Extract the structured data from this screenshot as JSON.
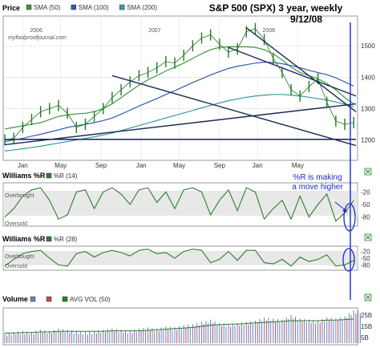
{
  "chart_data": [
    {
      "type": "line",
      "panel": "price",
      "title": "S&P 500 (SPX) 3 year, weekly",
      "subtitle": "9/12/08",
      "watermark": "myfoolproofjournal.com",
      "panel_label": "Price",
      "legend": [
        "SMA (50)",
        "SMA (100)",
        "SMA (200)"
      ],
      "legend_colors": [
        "#3a9a3a",
        "#2f5db0",
        "#3a9a9a"
      ],
      "x_tick_labels": [
        "Jan",
        "May",
        "Sep",
        "Jan",
        "May",
        "Sep",
        "Jan",
        "May"
      ],
      "year_labels": [
        "2006",
        "2007",
        "2008"
      ],
      "y_tick_labels": [
        "1500",
        "1400",
        "1300",
        "1200"
      ],
      "ylim": [
        1140,
        1590
      ],
      "x": [
        0,
        4,
        8,
        12,
        16,
        20,
        24,
        28,
        32,
        36,
        40,
        44,
        48,
        52,
        56,
        60,
        64,
        68,
        72,
        76,
        80,
        84,
        88,
        92,
        96,
        100,
        104,
        108,
        112,
        116,
        120,
        124,
        128,
        132,
        136,
        140,
        144,
        148,
        152,
        156
      ],
      "close": [
        1200,
        1205,
        1240,
        1265,
        1290,
        1300,
        1310,
        1285,
        1240,
        1250,
        1275,
        1300,
        1335,
        1360,
        1385,
        1405,
        1415,
        1430,
        1450,
        1445,
        1470,
        1500,
        1525,
        1535,
        1505,
        1480,
        1490,
        1545,
        1555,
        1520,
        1460,
        1415,
        1360,
        1340,
        1370,
        1395,
        1320,
        1260,
        1250,
        1255
      ],
      "sma50": [
        1235,
        1240,
        1245,
        1250,
        1255,
        1265,
        1275,
        1280,
        1283,
        1285,
        1290,
        1300,
        1315,
        1335,
        1355,
        1375,
        1392,
        1405,
        1420,
        1432,
        1445,
        1460,
        1475,
        1488,
        1495,
        1497,
        1497,
        1497,
        1495,
        1488,
        1475,
        1455,
        1432,
        1415,
        1405,
        1395,
        1380,
        1360,
        1335,
        1315
      ],
      "sma100": [
        1195,
        1200,
        1205,
        1212,
        1218,
        1225,
        1232,
        1240,
        1245,
        1250,
        1255,
        1262,
        1270,
        1282,
        1295,
        1308,
        1320,
        1332,
        1345,
        1357,
        1370,
        1383,
        1395,
        1407,
        1418,
        1428,
        1435,
        1440,
        1445,
        1448,
        1447,
        1443,
        1437,
        1430,
        1422,
        1415,
        1408,
        1398,
        1385,
        1372
      ],
      "sma200": [
        1165,
        1168,
        1172,
        1176,
        1180,
        1185,
        1190,
        1195,
        1200,
        1205,
        1210,
        1216,
        1222,
        1230,
        1238,
        1246,
        1254,
        1262,
        1270,
        1278,
        1286,
        1294,
        1302,
        1310,
        1318,
        1325,
        1331,
        1336,
        1340,
        1343,
        1345,
        1345,
        1343,
        1340,
        1336,
        1332,
        1327,
        1321,
        1314,
        1306
      ],
      "trendlines": [
        {
          "from": [
            48,
            1405
          ],
          "to": [
            157,
            1182
          ]
        },
        {
          "from": [
            108,
            1558
          ],
          "to": [
            157,
            1290
          ]
        },
        {
          "from": [
            100,
            1495
          ],
          "to": [
            157,
            1340
          ]
        },
        {
          "from": [
            0,
            1202
          ],
          "to": [
            157,
            1202
          ]
        },
        {
          "from": [
            0,
            1185
          ],
          "to": [
            157,
            1315
          ]
        }
      ]
    },
    {
      "type": "line",
      "panel": "williams14",
      "panel_label": "Williams %R",
      "legend": [
        "%R (14)"
      ],
      "top_label": "Overbought",
      "bottom_label": "Oversold",
      "y_tick_labels": [
        "-20",
        "-50",
        "-80"
      ],
      "ylim": [
        -100,
        0
      ],
      "annotation": "%R is making a move higher",
      "x": [
        0,
        4,
        8,
        12,
        16,
        20,
        24,
        28,
        32,
        36,
        40,
        44,
        48,
        52,
        56,
        60,
        64,
        68,
        72,
        76,
        80,
        84,
        88,
        92,
        96,
        100,
        104,
        108,
        112,
        116,
        120,
        124,
        128,
        132,
        136,
        140,
        144,
        148,
        152,
        156
      ],
      "values": [
        -80,
        -60,
        -30,
        -15,
        -10,
        -40,
        -85,
        -75,
        -20,
        -15,
        -60,
        -20,
        -10,
        -25,
        -50,
        -15,
        -10,
        -45,
        -20,
        -60,
        -15,
        -10,
        -20,
        -75,
        -40,
        -15,
        -65,
        -10,
        -20,
        -85,
        -60,
        -40,
        -85,
        -30,
        -80,
        -50,
        -25,
        -90,
        -70,
        -40
      ]
    },
    {
      "type": "line",
      "panel": "williams28",
      "panel_label": "Williams %R",
      "legend": [
        "%R (28)"
      ],
      "top_label": "Overbought",
      "bottom_label": "Oversold",
      "y_tick_labels": [
        "-20",
        "-50",
        "-80"
      ],
      "ylim": [
        -100,
        0
      ],
      "x": [
        0,
        4,
        8,
        12,
        16,
        20,
        24,
        28,
        32,
        36,
        40,
        44,
        48,
        52,
        56,
        60,
        64,
        68,
        72,
        76,
        80,
        84,
        88,
        92,
        96,
        100,
        104,
        108,
        112,
        116,
        120,
        124,
        128,
        132,
        136,
        140,
        144,
        148,
        152,
        156
      ],
      "values": [
        -85,
        -55,
        -30,
        -20,
        -15,
        -50,
        -80,
        -85,
        -30,
        -20,
        -45,
        -25,
        -15,
        -25,
        -40,
        -15,
        -10,
        -30,
        -25,
        -50,
        -20,
        -10,
        -15,
        -70,
        -55,
        -20,
        -60,
        -15,
        -15,
        -70,
        -75,
        -55,
        -85,
        -45,
        -65,
        -55,
        -35,
        -85,
        -80,
        -60
      ]
    },
    {
      "type": "bar",
      "panel": "volume",
      "panel_label": "Volume",
      "legend": [
        "AVG VOL (50)"
      ],
      "y_tick_labels": [
        "25B",
        "15B",
        "5B"
      ],
      "ylim": [
        0,
        30
      ],
      "x": [
        0,
        4,
        8,
        12,
        16,
        20,
        24,
        28,
        32,
        36,
        40,
        44,
        48,
        52,
        56,
        60,
        64,
        68,
        72,
        76,
        80,
        84,
        88,
        92,
        96,
        100,
        104,
        108,
        112,
        116,
        120,
        124,
        128,
        132,
        136,
        140,
        144,
        148,
        152,
        156
      ],
      "values": [
        8,
        9,
        10,
        9,
        11,
        10,
        12,
        11,
        10,
        9,
        10,
        11,
        12,
        11,
        10,
        12,
        13,
        12,
        14,
        13,
        15,
        16,
        18,
        20,
        17,
        16,
        17,
        18,
        19,
        22,
        21,
        20,
        24,
        21,
        20,
        19,
        22,
        21,
        23,
        28
      ],
      "avg": [
        9,
        9,
        9.5,
        9.5,
        10,
        10,
        10.5,
        10.5,
        10.5,
        10.5,
        10.5,
        10.5,
        11,
        11,
        11,
        11,
        11.5,
        12,
        12.5,
        13,
        13.5,
        14,
        15,
        16,
        16.5,
        17,
        17,
        17.5,
        18,
        18.5,
        19,
        19.5,
        20,
        20,
        20,
        20,
        20.5,
        20.5,
        21,
        21.5
      ]
    }
  ]
}
